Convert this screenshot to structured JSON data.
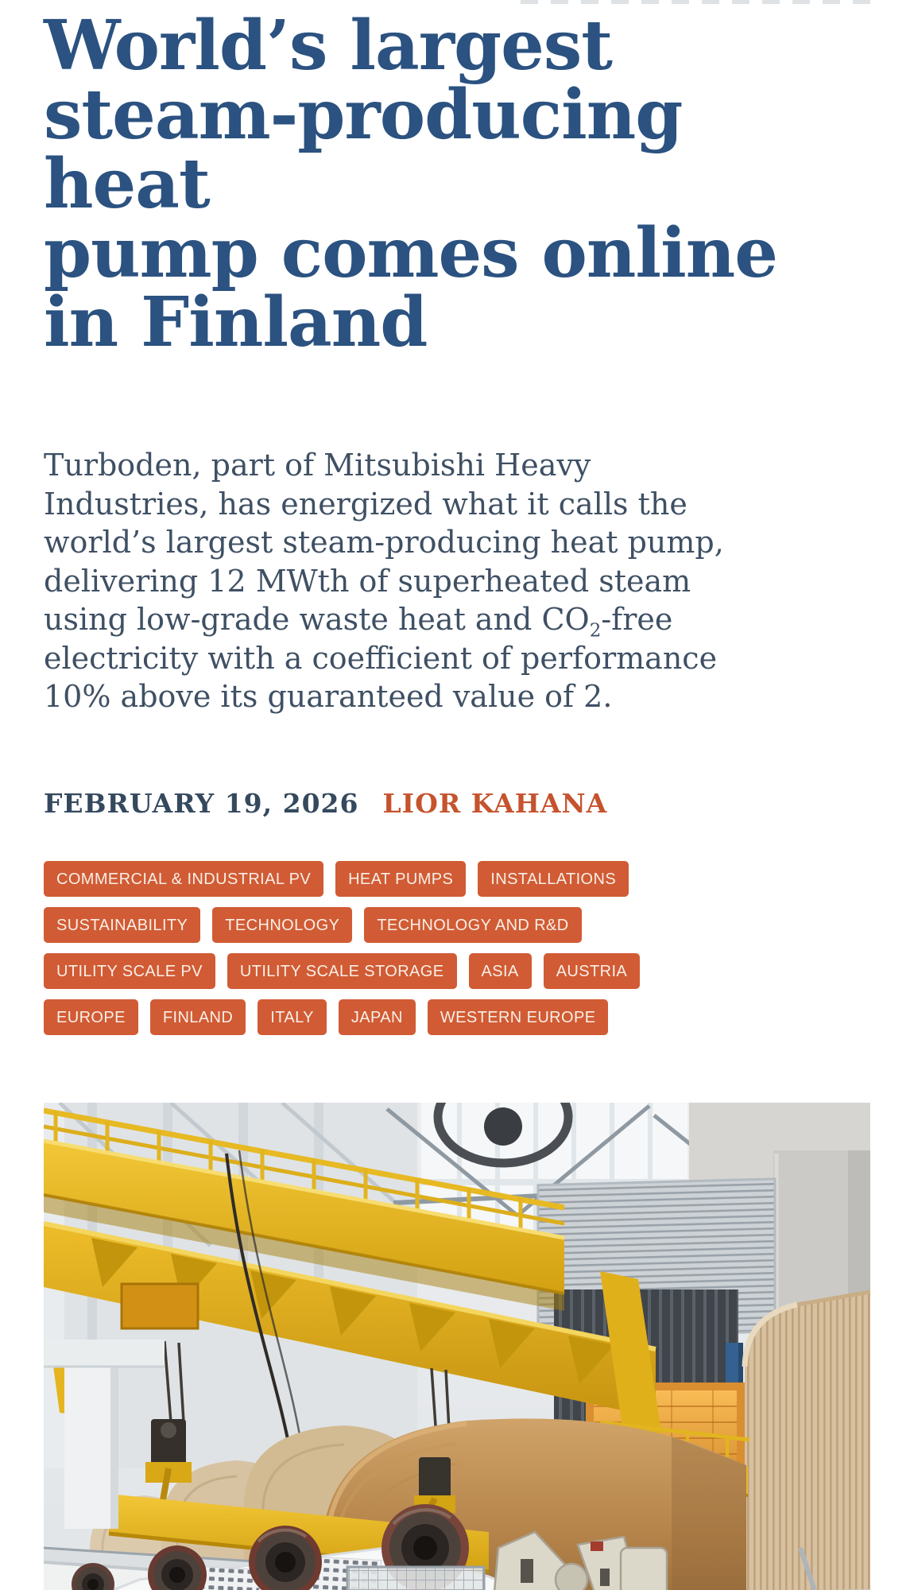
{
  "article": {
    "title": "World’s largest\nsteam-producing heat\npump comes online\nin Finland",
    "standfirst": {
      "before_sub": "Turboden, part of Mitsubishi Heavy\nIndustries, has energized what it calls the\nworld’s largest steam-producing heat pump,\ndelivering 12 MWth of superheated steam\nusing low-grade waste heat and CO",
      "sub": "2",
      "after_sub": "-free\nelectricity with a coefficient of performance\n10% above its guaranteed value of 2."
    },
    "meta": {
      "date": "FEBRUARY 19, 2026",
      "author": "LIOR KAHANA"
    },
    "tags": {
      "rows": [
        [
          "COMMERCIAL & INDUSTRIAL PV",
          "HEAT PUMPS",
          "INSTALLATIONS"
        ],
        [
          "SUSTAINABILITY",
          "TECHNOLOGY",
          "TECHNOLOGY AND R&D"
        ],
        [
          "UTILITY SCALE PV",
          "UTILITY SCALE STORAGE",
          "ASIA",
          "AUSTRIA"
        ],
        [
          "EUROPE",
          "FINLAND",
          "ITALY",
          "JAPAN",
          "WESTERN EUROPE"
        ]
      ]
    }
  },
  "colors": {
    "headline": "#2b5280",
    "body": "#3f5064",
    "date": "#35495e",
    "accent_orange": "#c5532d",
    "tag_bg": "#d15b34",
    "tag_text": "#f8efe7",
    "page_bg": "#ffffff"
  }
}
